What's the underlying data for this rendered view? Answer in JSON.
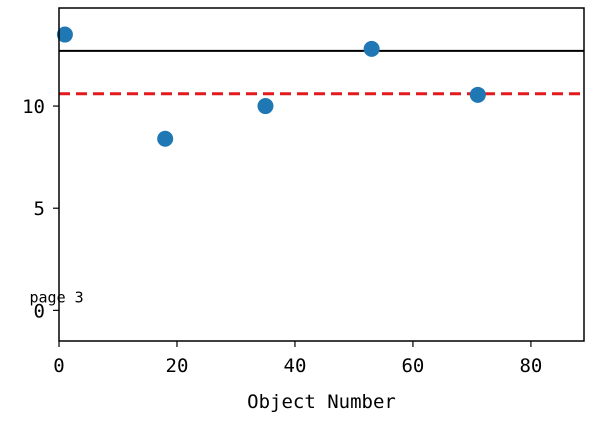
{
  "chart_data": {
    "type": "scatter",
    "xlabel": "Object Number",
    "ylabel": "",
    "title": "",
    "xlim": [
      0,
      89
    ],
    "ylim": [
      -1.5,
      14.8
    ],
    "x_ticks": [
      0,
      20,
      40,
      60,
      80
    ],
    "y_ticks": [
      0,
      5,
      10
    ],
    "grid": false,
    "points": [
      {
        "x": 1,
        "y": 13.5
      },
      {
        "x": 18,
        "y": 8.4
      },
      {
        "x": 35,
        "y": 10.0
      },
      {
        "x": 53,
        "y": 12.8
      },
      {
        "x": 71,
        "y": 10.55
      }
    ],
    "reference_lines": [
      {
        "y": 12.7,
        "style": "solid",
        "color": "#000000"
      },
      {
        "y": 10.6,
        "style": "dashed",
        "color": "#e31a1c"
      }
    ],
    "annotation": {
      "text": "page 3",
      "x": -5.0,
      "y": 0.0
    },
    "marker_color": "#1f77b4"
  }
}
